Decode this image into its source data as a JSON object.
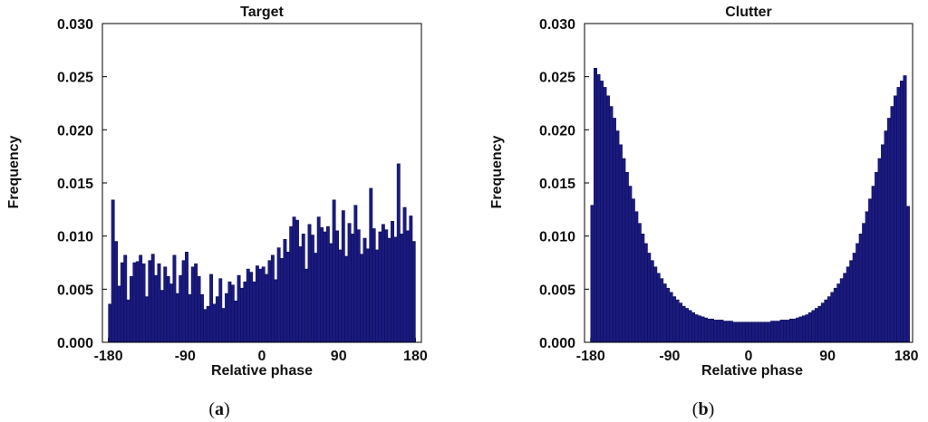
{
  "chart_data": [
    {
      "type": "bar",
      "panel_label": "a",
      "title": "Target",
      "xlabel": "Relative phase",
      "ylabel": "Frequency",
      "xlim": [
        -187,
        187
      ],
      "ylim": [
        0,
        0.03
      ],
      "x_ticks": [
        "-180",
        "-90",
        "0",
        "90",
        "180"
      ],
      "y_ticks": [
        "0.000",
        "0.005",
        "0.010",
        "0.015",
        "0.020",
        "0.025",
        "0.030"
      ],
      "grid": false,
      "color": "#1a1a80",
      "bin_width": 3.6,
      "x_start": -180,
      "values": [
        0.0036,
        0.0134,
        0.0095,
        0.0053,
        0.0075,
        0.0082,
        0.004,
        0.0062,
        0.0075,
        0.0076,
        0.0082,
        0.0074,
        0.0043,
        0.0077,
        0.0083,
        0.0063,
        0.0074,
        0.0049,
        0.0071,
        0.0062,
        0.0055,
        0.0082,
        0.0046,
        0.0063,
        0.0077,
        0.0085,
        0.0045,
        0.0071,
        0.0074,
        0.0062,
        0.0045,
        0.0031,
        0.0034,
        0.0064,
        0.0036,
        0.0043,
        0.006,
        0.0032,
        0.0046,
        0.0057,
        0.0054,
        0.0039,
        0.0063,
        0.0051,
        0.0057,
        0.0069,
        0.0066,
        0.0057,
        0.0072,
        0.0069,
        0.0071,
        0.0064,
        0.0077,
        0.0082,
        0.0059,
        0.0089,
        0.0079,
        0.0097,
        0.0085,
        0.0109,
        0.0118,
        0.0115,
        0.009,
        0.0102,
        0.0069,
        0.0111,
        0.0101,
        0.0084,
        0.0118,
        0.0108,
        0.0104,
        0.0109,
        0.0093,
        0.0134,
        0.0105,
        0.0087,
        0.0124,
        0.0081,
        0.0112,
        0.0102,
        0.0129,
        0.0106,
        0.0083,
        0.0098,
        0.0088,
        0.0145,
        0.0107,
        0.0087,
        0.0104,
        0.0111,
        0.0106,
        0.0098,
        0.0114,
        0.0099,
        0.0168,
        0.0102,
        0.0127,
        0.0105,
        0.0119,
        0.0095
      ]
    },
    {
      "type": "bar",
      "panel_label": "b",
      "title": "Clutter",
      "xlabel": "Relative phase",
      "ylabel": "Frequency",
      "xlim": [
        -187,
        187
      ],
      "ylim": [
        0,
        0.03
      ],
      "x_ticks": [
        "-180",
        "-90",
        "0",
        "90",
        "180"
      ],
      "y_ticks": [
        "0.000",
        "0.005",
        "0.010",
        "0.015",
        "0.020",
        "0.025",
        "0.030"
      ],
      "grid": false,
      "color": "#1a1a80",
      "bin_width": 3.6,
      "x_start": -180,
      "values": [
        0.0129,
        0.0258,
        0.0252,
        0.0246,
        0.024,
        0.0232,
        0.0222,
        0.0211,
        0.0199,
        0.0186,
        0.0173,
        0.016,
        0.0147,
        0.0135,
        0.0123,
        0.0112,
        0.0102,
        0.0093,
        0.0084,
        0.0077,
        0.0071,
        0.0065,
        0.006,
        0.0055,
        0.0051,
        0.0047,
        0.0043,
        0.004,
        0.0037,
        0.0034,
        0.0032,
        0.003,
        0.0028,
        0.0026,
        0.0025,
        0.0024,
        0.0023,
        0.0022,
        0.0022,
        0.0021,
        0.0021,
        0.0021,
        0.002,
        0.002,
        0.002,
        0.0019,
        0.0019,
        0.0019,
        0.0019,
        0.0019,
        0.0019,
        0.0019,
        0.0019,
        0.0019,
        0.0019,
        0.0019,
        0.0019,
        0.002,
        0.002,
        0.002,
        0.0021,
        0.0021,
        0.0021,
        0.0022,
        0.0022,
        0.0023,
        0.0024,
        0.0025,
        0.0026,
        0.0028,
        0.003,
        0.0032,
        0.0034,
        0.0037,
        0.004,
        0.0043,
        0.0047,
        0.0051,
        0.0055,
        0.006,
        0.0065,
        0.0071,
        0.0077,
        0.0084,
        0.0093,
        0.0102,
        0.0112,
        0.0123,
        0.0135,
        0.0147,
        0.016,
        0.0173,
        0.0186,
        0.0199,
        0.0211,
        0.0222,
        0.0232,
        0.024,
        0.0246,
        0.0251,
        0.0128
      ]
    }
  ]
}
